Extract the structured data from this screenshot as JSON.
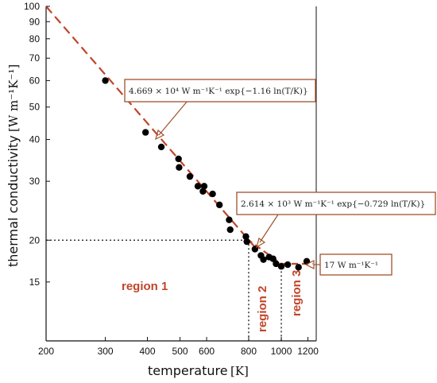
{
  "chart_data": {
    "type": "scatter",
    "xlabel": "temperature",
    "xlabel_unit": "[K]",
    "ylabel": "thermal conductivity",
    "ylabel_unit": "[W m⁻¹K⁻¹]",
    "x_scale": "log",
    "y_scale": "log",
    "xlim": [
      200,
      1270
    ],
    "ylim": [
      10,
      100
    ],
    "x_ticks": [
      "200",
      "300",
      "400",
      "500",
      "600",
      "800",
      "1000",
      "1200"
    ],
    "y_ticks": [
      "100",
      "90",
      "80",
      "70",
      "60",
      "50",
      "40",
      "30",
      "20",
      "15"
    ],
    "points": [
      {
        "x": 300,
        "y": 60.0
      },
      {
        "x": 395,
        "y": 42.0
      },
      {
        "x": 440,
        "y": 38.0
      },
      {
        "x": 495,
        "y": 35.0
      },
      {
        "x": 497,
        "y": 33.0
      },
      {
        "x": 535,
        "y": 31.0
      },
      {
        "x": 565,
        "y": 29.0
      },
      {
        "x": 585,
        "y": 28.0
      },
      {
        "x": 590,
        "y": 29.0
      },
      {
        "x": 625,
        "y": 27.5
      },
      {
        "x": 655,
        "y": 25.5
      },
      {
        "x": 700,
        "y": 23.0
      },
      {
        "x": 705,
        "y": 21.5
      },
      {
        "x": 785,
        "y": 20.5
      },
      {
        "x": 790,
        "y": 19.8
      },
      {
        "x": 835,
        "y": 18.8
      },
      {
        "x": 870,
        "y": 18.0
      },
      {
        "x": 885,
        "y": 17.5
      },
      {
        "x": 920,
        "y": 17.8
      },
      {
        "x": 945,
        "y": 17.6
      },
      {
        "x": 965,
        "y": 17.0
      },
      {
        "x": 1000,
        "y": 16.7
      },
      {
        "x": 1045,
        "y": 16.9
      },
      {
        "x": 1125,
        "y": 16.6
      },
      {
        "x": 1190,
        "y": 17.3
      }
    ],
    "fits": [
      {
        "label": "4.669 × 10⁴ W m⁻¹K⁻¹ exp{−1.16 ln(T/K)}",
        "x_range": [
          200,
          830
        ],
        "color": "#c0452a"
      },
      {
        "label": "2.614 × 10³ W m⁻¹K⁻¹ exp{−0.729 ln(T/K)}",
        "x_range": [
          790,
          1010
        ],
        "color": "#c0452a"
      },
      {
        "label": "17 W m⁻¹K⁻¹",
        "x_range": [
          1000,
          1240
        ],
        "color": "#c0452a"
      }
    ],
    "regions": [
      {
        "label": "region 1"
      },
      {
        "label": "region 2"
      },
      {
        "label": "region 3"
      }
    ],
    "guides": [
      {
        "x": 800,
        "y": 20
      },
      {
        "x": 1000,
        "y": 16.6
      }
    ],
    "grid": false
  },
  "colors": {
    "accent": "#c0452a",
    "marker": "#000000",
    "callout_border": "#a0522d"
  }
}
